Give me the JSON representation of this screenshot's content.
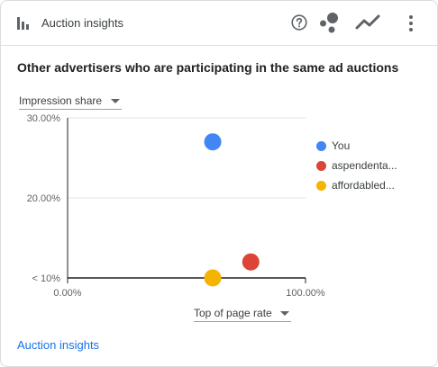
{
  "header": {
    "title": "Auction insights",
    "icons": [
      "bar-chart-icon",
      "help-icon",
      "scatter-icon",
      "trend-icon",
      "more-vert-icon"
    ]
  },
  "subtitle": "Other advertisers who are participating in the same ad auctions",
  "y_metric_select": {
    "selected": "Impression share"
  },
  "x_metric_select": {
    "selected": "Top of page rate"
  },
  "footer": {
    "link": "Auction insights"
  },
  "chart_data": {
    "type": "scatter",
    "ytick_labels": [
      "30.00%",
      "20.00%",
      "< 10%"
    ],
    "xtick_labels": [
      "0.00%",
      "100.00%"
    ],
    "ylim": [
      10,
      30
    ],
    "xlim": [
      0,
      100
    ],
    "series": [
      {
        "name": "You",
        "color": "#4285f4",
        "x": 61,
        "y": 27
      },
      {
        "name": "aspendenta...",
        "color": "#db4437",
        "x": 77,
        "y": 12
      },
      {
        "name": "affordabled...",
        "color": "#f4b400",
        "x": 61,
        "y": 10
      }
    ],
    "grid": true,
    "legend": "right"
  }
}
